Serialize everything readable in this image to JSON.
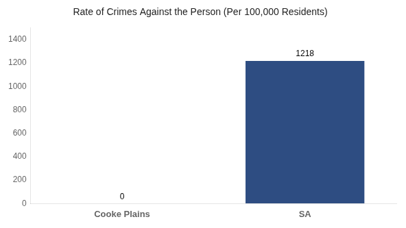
{
  "chart_data": {
    "type": "bar",
    "title": "Rate of Crimes Against the Person (Per 100,000 Residents)",
    "categories": [
      "Cooke Plains",
      "SA"
    ],
    "values": [
      0,
      1218
    ],
    "color": "#2e4d82",
    "ylim": [
      0,
      1500
    ],
    "yticks": [
      0,
      200,
      400,
      600,
      800,
      1000,
      1200,
      1400
    ],
    "grid": false,
    "data_labels": true
  }
}
